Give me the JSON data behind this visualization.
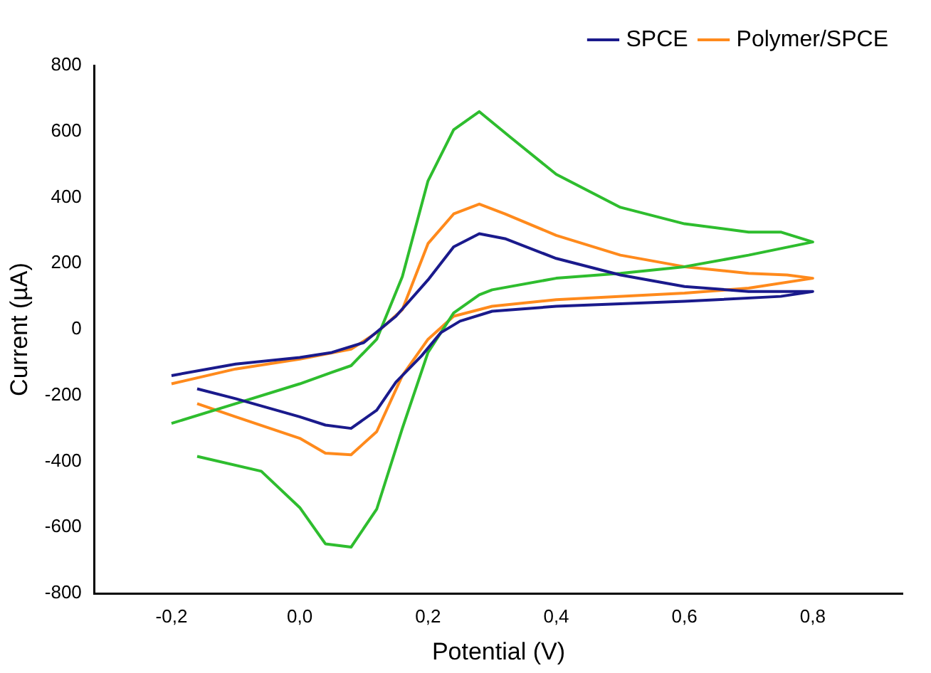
{
  "chart_data": {
    "type": "line",
    "xlabel": "Potential (V)",
    "ylabel": "Current (µA)",
    "xlim": [
      -0.32,
      0.94
    ],
    "ylim": [
      -800,
      800
    ],
    "xticks": [
      {
        "value": -0.2,
        "label": "-0,2"
      },
      {
        "value": 0,
        "label": "0,0"
      },
      {
        "value": 0.2,
        "label": "0,2"
      },
      {
        "value": 0.4,
        "label": "0,4"
      },
      {
        "value": 0.6,
        "label": "0,6"
      },
      {
        "value": 0.8,
        "label": "0,8"
      }
    ],
    "yticks": [
      -800,
      -600,
      -400,
      -200,
      0,
      200,
      400,
      600,
      800
    ],
    "grid": false,
    "legend": "top right",
    "marker": "none",
    "line_style": "solid",
    "series": [
      {
        "name": "SPCE",
        "color": "#1a1a8c",
        "x": [
          -0.2,
          -0.1,
          0.0,
          0.05,
          0.1,
          0.15,
          0.2,
          0.24,
          0.28,
          0.32,
          0.4,
          0.5,
          0.6,
          0.7,
          0.8,
          0.75,
          0.6,
          0.4,
          0.3,
          0.25,
          0.22,
          0.19,
          0.15,
          0.12,
          0.08,
          0.04,
          0.0,
          -0.1,
          -0.16
        ],
        "values": [
          -140,
          -105,
          -85,
          -70,
          -40,
          40,
          150,
          250,
          290,
          275,
          215,
          165,
          130,
          115,
          115,
          100,
          85,
          70,
          55,
          25,
          -10,
          -80,
          -160,
          -245,
          -300,
          -290,
          -265,
          -210,
          -180
        ]
      },
      {
        "color": "#2ebd2e",
        "x": [
          -0.2,
          -0.1,
          0.0,
          0.05,
          0.08,
          0.12,
          0.16,
          0.2,
          0.24,
          0.28,
          0.33,
          0.4,
          0.5,
          0.6,
          0.7,
          0.75,
          0.8,
          0.7,
          0.6,
          0.5,
          0.4,
          0.3,
          0.28,
          0.24,
          0.2,
          0.16,
          0.12,
          0.08,
          0.04,
          0.0,
          -0.06,
          -0.16
        ],
        "values": [
          -285,
          -225,
          -165,
          -130,
          -110,
          -30,
          160,
          450,
          605,
          660,
          580,
          470,
          370,
          320,
          295,
          295,
          265,
          225,
          190,
          170,
          155,
          120,
          105,
          50,
          -70,
          -300,
          -545,
          -660,
          -650,
          -540,
          -430,
          -385
        ]
      },
      {
        "name": "Polymer/SPCE",
        "color": "#ff8a1c",
        "x": [
          -0.2,
          -0.1,
          0.0,
          0.08,
          0.12,
          0.16,
          0.2,
          0.24,
          0.28,
          0.32,
          0.4,
          0.5,
          0.6,
          0.7,
          0.76,
          0.8,
          0.7,
          0.6,
          0.4,
          0.3,
          0.24,
          0.2,
          0.16,
          0.12,
          0.08,
          0.04,
          0.0,
          -0.1,
          -0.16
        ],
        "values": [
          -165,
          -120,
          -90,
          -60,
          -10,
          60,
          260,
          350,
          380,
          350,
          285,
          225,
          190,
          170,
          165,
          155,
          125,
          110,
          90,
          70,
          40,
          -30,
          -140,
          -310,
          -380,
          -375,
          -330,
          -265,
          -225
        ]
      }
    ]
  }
}
